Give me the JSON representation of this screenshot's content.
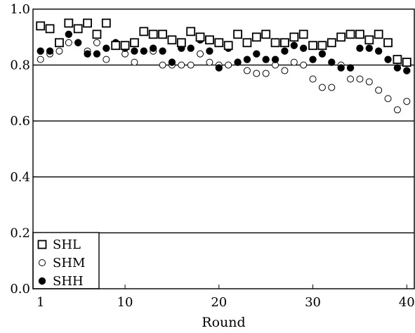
{
  "chart_data": {
    "type": "scatter",
    "title": "",
    "xlabel": "Round",
    "ylabel": "",
    "xlim": [
      0.2,
      40.8
    ],
    "ylim": [
      0.0,
      1.0
    ],
    "x_ticks": [
      1,
      10,
      20,
      30,
      40
    ],
    "x_tick_labels": [
      "1",
      "10",
      "20",
      "30",
      "40"
    ],
    "y_ticks": [
      0.0,
      0.2,
      0.4,
      0.6,
      0.8,
      1.0
    ],
    "y_tick_labels": [
      "0.0",
      "0.2",
      "0.4",
      "0.6",
      "0.8",
      "1.0"
    ],
    "grid": "horizontal lines at 0.2, 0.4, 0.6, 0.8",
    "legend_position": "bottom-left",
    "series": [
      {
        "name": "SHL",
        "marker": "open-square",
        "x": [
          1,
          2,
          3,
          4,
          5,
          6,
          7,
          8,
          9,
          10,
          11,
          12,
          13,
          14,
          15,
          16,
          17,
          18,
          19,
          20,
          21,
          22,
          23,
          24,
          25,
          26,
          27,
          28,
          29,
          30,
          31,
          32,
          33,
          34,
          35,
          36,
          37,
          38,
          39,
          40
        ],
        "y": [
          0.94,
          0.93,
          0.88,
          0.95,
          0.93,
          0.95,
          0.91,
          0.95,
          0.87,
          0.87,
          0.88,
          0.92,
          0.91,
          0.91,
          0.89,
          0.88,
          0.92,
          0.9,
          0.89,
          0.88,
          0.87,
          0.91,
          0.88,
          0.9,
          0.91,
          0.88,
          0.88,
          0.9,
          0.91,
          0.87,
          0.87,
          0.88,
          0.9,
          0.91,
          0.91,
          0.89,
          0.91,
          0.88,
          0.82,
          0.81
        ]
      },
      {
        "name": "SHM",
        "marker": "open-circle",
        "x": [
          1,
          2,
          3,
          4,
          5,
          6,
          7,
          8,
          9,
          10,
          11,
          12,
          13,
          14,
          15,
          16,
          17,
          18,
          19,
          20,
          21,
          22,
          23,
          24,
          25,
          26,
          27,
          28,
          29,
          30,
          31,
          32,
          33,
          34,
          35,
          36,
          37,
          38,
          39,
          40
        ],
        "y": [
          0.82,
          0.84,
          0.85,
          0.88,
          0.88,
          0.85,
          0.88,
          0.82,
          0.88,
          0.84,
          0.81,
          0.85,
          0.85,
          0.8,
          0.8,
          0.8,
          0.8,
          0.84,
          0.81,
          0.8,
          0.8,
          0.81,
          0.78,
          0.77,
          0.77,
          0.8,
          0.78,
          0.81,
          0.8,
          0.75,
          0.72,
          0.72,
          0.8,
          0.75,
          0.75,
          0.74,
          0.71,
          0.68,
          0.64,
          0.67
        ]
      },
      {
        "name": "SHH",
        "marker": "filled-circle",
        "x": [
          1,
          2,
          3,
          4,
          5,
          6,
          7,
          8,
          9,
          10,
          11,
          12,
          13,
          14,
          15,
          16,
          17,
          18,
          19,
          20,
          21,
          22,
          23,
          24,
          25,
          26,
          27,
          28,
          29,
          30,
          31,
          32,
          33,
          34,
          35,
          36,
          37,
          38,
          39,
          40
        ],
        "y": [
          0.85,
          0.85,
          0.88,
          0.91,
          0.88,
          0.84,
          0.84,
          0.86,
          0.88,
          0.86,
          0.85,
          0.85,
          0.86,
          0.85,
          0.81,
          0.86,
          0.86,
          0.89,
          0.85,
          0.79,
          0.86,
          0.81,
          0.82,
          0.84,
          0.82,
          0.82,
          0.85,
          0.87,
          0.86,
          0.82,
          0.84,
          0.81,
          0.79,
          0.79,
          0.86,
          0.86,
          0.85,
          0.82,
          0.79,
          0.78
        ]
      }
    ]
  }
}
